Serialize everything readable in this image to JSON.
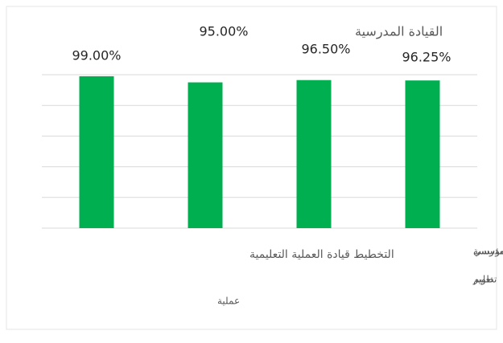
{
  "chart_data": {
    "type": "bar",
    "title": "القيادة المدرسية",
    "values": [
      99,
      95,
      96.5,
      96.25
    ],
    "value_labels": [
      "99.00%",
      "95.00%",
      "96.50%",
      "96.25%"
    ],
    "category_texts": [
      "التخطيط قيادة العملية التعليمية",
      "عملية",
      "مؤسسة",
      "مدرسي",
      "تطوير",
      "تعليم"
    ],
    "color": "#00b050",
    "ylim": [
      0,
      100
    ],
    "yticks": [
      0,
      20,
      40,
      60,
      80,
      100
    ],
    "grid": true
  }
}
